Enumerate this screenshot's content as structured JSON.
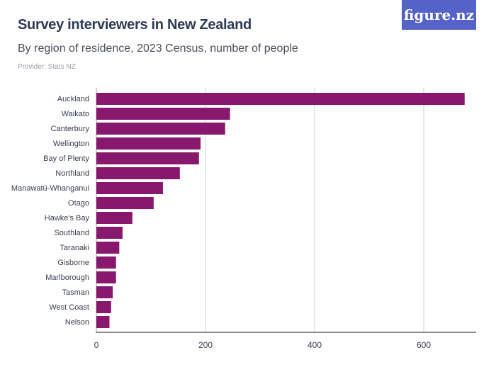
{
  "header": {
    "title": "Survey interviewers in New Zealand",
    "subtitle": "By region of residence, 2023 Census, number of people",
    "provider": "Provider: Stats NZ",
    "logo": "figure.nz"
  },
  "chart_data": {
    "type": "bar",
    "orientation": "horizontal",
    "categories": [
      "Auckland",
      "Waikato",
      "Canterbury",
      "Wellington",
      "Bay of Plenty",
      "Northland",
      "Manawatū-Whanganui",
      "Otago",
      "Hawke's Bay",
      "Southland",
      "Taranaki",
      "Gisborne",
      "Marlborough",
      "Tasman",
      "West Coast",
      "Nelson"
    ],
    "values": [
      675,
      245,
      236,
      191,
      188,
      153,
      122,
      105,
      66,
      48,
      42,
      36,
      36,
      30,
      27,
      24
    ],
    "xlim": [
      0,
      700
    ],
    "xticks": [
      0,
      200,
      400,
      600
    ],
    "grid": true,
    "color": "#88176e"
  }
}
